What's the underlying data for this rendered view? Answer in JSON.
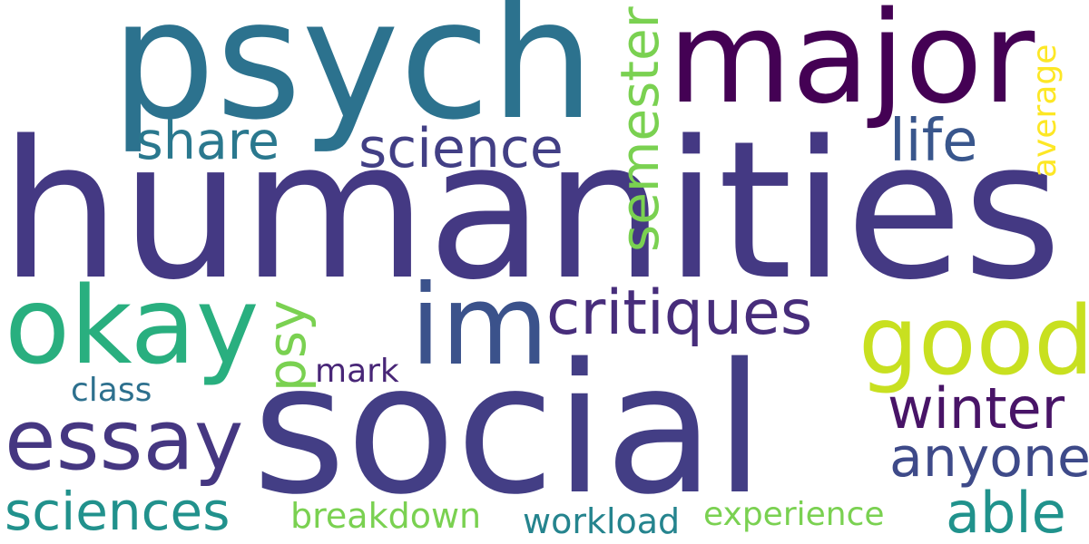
{
  "words": [
    {
      "id": "humanities",
      "text": "humanities",
      "color": "#443983",
      "orientation": "horizontal"
    },
    {
      "id": "social",
      "text": "social",
      "color": "#433e85",
      "orientation": "horizontal"
    },
    {
      "id": "psych",
      "text": "psych",
      "color": "#2c728e",
      "orientation": "horizontal"
    },
    {
      "id": "major",
      "text": "major",
      "color": "#440154",
      "orientation": "horizontal"
    },
    {
      "id": "okay",
      "text": "okay",
      "color": "#29af7f",
      "orientation": "horizontal"
    },
    {
      "id": "im",
      "text": "im",
      "color": "#3b528b",
      "orientation": "horizontal"
    },
    {
      "id": "good",
      "text": "good",
      "color": "#c8e020",
      "orientation": "horizontal"
    },
    {
      "id": "essay",
      "text": "essay",
      "color": "#453781",
      "orientation": "horizontal"
    },
    {
      "id": "critiques",
      "text": "critiques",
      "color": "#472d7b",
      "orientation": "horizontal"
    },
    {
      "id": "science",
      "text": "science",
      "color": "#423f85",
      "orientation": "horizontal"
    },
    {
      "id": "share",
      "text": "share",
      "color": "#2a788e",
      "orientation": "horizontal"
    },
    {
      "id": "life",
      "text": "life",
      "color": "#39568c",
      "orientation": "horizontal"
    },
    {
      "id": "semester",
      "text": "semester",
      "color": "#7ad151",
      "orientation": "vertical"
    },
    {
      "id": "average",
      "text": "average",
      "color": "#fde725",
      "orientation": "vertical"
    },
    {
      "id": "psy",
      "text": "psy",
      "color": "#7ad151",
      "orientation": "vertical"
    },
    {
      "id": "mark",
      "text": "mark",
      "color": "#482677",
      "orientation": "horizontal"
    },
    {
      "id": "class",
      "text": "class",
      "color": "#2d708e",
      "orientation": "horizontal"
    },
    {
      "id": "winter",
      "text": "winter",
      "color": "#481467",
      "orientation": "horizontal"
    },
    {
      "id": "anyone",
      "text": "anyone",
      "color": "#3e4a89",
      "orientation": "horizontal"
    },
    {
      "id": "sciences",
      "text": "sciences",
      "color": "#21918c",
      "orientation": "horizontal"
    },
    {
      "id": "breakdown",
      "text": "breakdown",
      "color": "#7ad151",
      "orientation": "horizontal"
    },
    {
      "id": "workload",
      "text": "workload",
      "color": "#25848e",
      "orientation": "horizontal"
    },
    {
      "id": "experience",
      "text": "experience",
      "color": "#7ad151",
      "orientation": "horizontal"
    },
    {
      "id": "able",
      "text": "able",
      "color": "#20928c",
      "orientation": "horizontal"
    }
  ]
}
